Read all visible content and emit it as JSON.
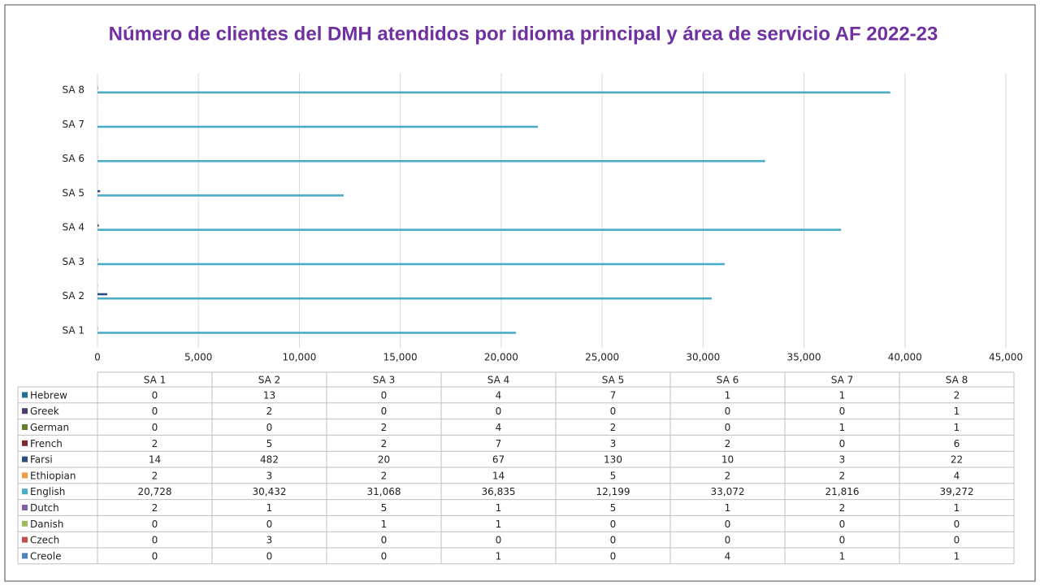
{
  "chart_data": {
    "type": "bar",
    "orientation": "horizontal",
    "title": "Número de clientes del DMH atendidos por idioma principal y área de servicio AF 2022-23",
    "categories": [
      "SA 1",
      "SA 2",
      "SA 3",
      "SA 4",
      "SA 5",
      "SA 6",
      "SA 7",
      "SA 8"
    ],
    "series": [
      {
        "name": "Hebrew",
        "color": "#1f7391",
        "values": [
          0,
          13,
          0,
          4,
          7,
          1,
          1,
          2
        ]
      },
      {
        "name": "Greek",
        "color": "#4e3a6e",
        "values": [
          0,
          2,
          0,
          0,
          0,
          0,
          0,
          1
        ]
      },
      {
        "name": "German",
        "color": "#5f7f2a",
        "values": [
          0,
          0,
          2,
          4,
          2,
          0,
          1,
          1
        ]
      },
      {
        "name": "French",
        "color": "#7b2b2b",
        "values": [
          2,
          5,
          2,
          7,
          3,
          2,
          0,
          6
        ]
      },
      {
        "name": "Farsi",
        "color": "#2c4d7c",
        "values": [
          14,
          482,
          20,
          67,
          130,
          10,
          3,
          22
        ]
      },
      {
        "name": "Ethiopian",
        "color": "#f39a43",
        "values": [
          2,
          3,
          2,
          14,
          5,
          2,
          2,
          4
        ]
      },
      {
        "name": "English",
        "color": "#4bacc6",
        "values": [
          20728,
          30432,
          31068,
          36835,
          12199,
          33072,
          21816,
          39272
        ],
        "value_labels": [
          "20,728",
          "30,432",
          "31,068",
          "36,835",
          "12,199",
          "33,072",
          "21,816",
          "39,272"
        ]
      },
      {
        "name": "Dutch",
        "color": "#8064a2",
        "values": [
          2,
          1,
          5,
          1,
          5,
          1,
          2,
          1
        ]
      },
      {
        "name": "Danish",
        "color": "#9bbb59",
        "values": [
          0,
          0,
          1,
          1,
          0,
          0,
          0,
          0
        ]
      },
      {
        "name": "Czech",
        "color": "#c0504d",
        "values": [
          0,
          3,
          0,
          0,
          0,
          0,
          0,
          0
        ]
      },
      {
        "name": "Creole",
        "color": "#4f81bd",
        "values": [
          0,
          0,
          0,
          1,
          0,
          4,
          1,
          1
        ]
      }
    ],
    "xlim": [
      0,
      45000
    ],
    "xticks": [
      0,
      {
        "value": 5000,
        "label": "5,000"
      },
      {
        "value": 10000,
        "label": "10,000"
      },
      {
        "value": 15000,
        "label": "15,000"
      },
      {
        "value": 20000,
        "label": "20,000"
      },
      {
        "value": 25000,
        "label": "25,000"
      },
      {
        "value": 30000,
        "label": "30,000"
      },
      {
        "value": 35000,
        "label": "35,000"
      },
      {
        "value": 40000,
        "label": "40,000"
      },
      {
        "value": 45000,
        "label": "45,000"
      }
    ],
    "grid": true,
    "data_table": true
  }
}
